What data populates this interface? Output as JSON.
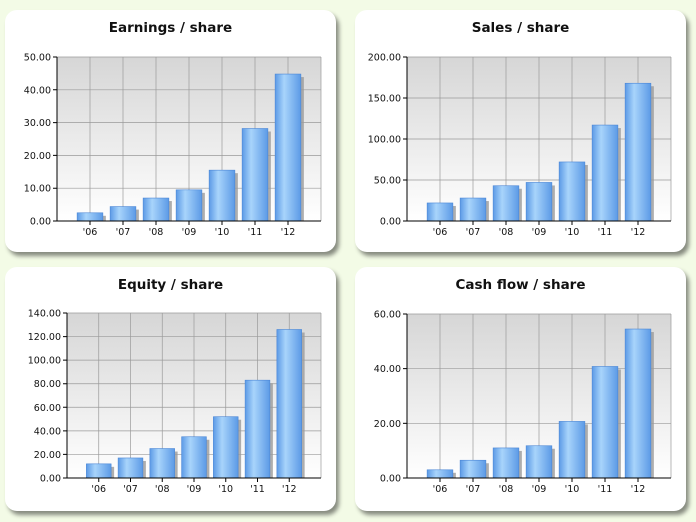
{
  "colors": {
    "bar_light": "#a8d4fb",
    "bar_dark": "#5c9ae6",
    "bar_shadow": "#9a9a9a",
    "plot_bg_top": "#d6d6d6",
    "plot_bg_bottom": "#ffffff",
    "grid": "#9a9a9a"
  },
  "chart_data": [
    {
      "type": "bar",
      "title": "Earnings / share",
      "categories": [
        "'06",
        "'07",
        "'08",
        "'09",
        "'10",
        "'11",
        "'12"
      ],
      "values": [
        2.5,
        4.4,
        7.0,
        9.5,
        15.5,
        28.2,
        44.8
      ],
      "ylim": [
        0,
        50
      ],
      "yticks": [
        "0.00",
        "10.00",
        "20.00",
        "30.00",
        "40.00",
        "50.00"
      ],
      "grid": true
    },
    {
      "type": "bar",
      "title": "Sales / share",
      "categories": [
        "'06",
        "'07",
        "'08",
        "'09",
        "'10",
        "'11",
        "'12"
      ],
      "values": [
        22,
        28,
        43,
        47,
        72,
        117,
        168
      ],
      "ylim": [
        0,
        200
      ],
      "yticks": [
        "0.00",
        "50.00",
        "100.00",
        "150.00",
        "200.00"
      ],
      "grid": true
    },
    {
      "type": "bar",
      "title": "Equity / share",
      "categories": [
        "'06",
        "'07",
        "'08",
        "'09",
        "'10",
        "'11",
        "'12"
      ],
      "values": [
        12,
        17,
        25,
        35,
        52,
        83,
        126
      ],
      "ylim": [
        0,
        140
      ],
      "yticks": [
        "0.00",
        "20.00",
        "40.00",
        "60.00",
        "80.00",
        "100.00",
        "120.00",
        "140.00"
      ],
      "grid": true
    },
    {
      "type": "bar",
      "title": "Cash flow / share",
      "categories": [
        "'06",
        "'07",
        "'08",
        "'09",
        "'10",
        "'11",
        "'12"
      ],
      "values": [
        3,
        6.5,
        11,
        11.8,
        20.7,
        40.8,
        54.5
      ],
      "ylim": [
        0,
        60
      ],
      "yticks": [
        "0.00",
        "20.00",
        "40.00",
        "60.00"
      ],
      "grid": true
    }
  ]
}
